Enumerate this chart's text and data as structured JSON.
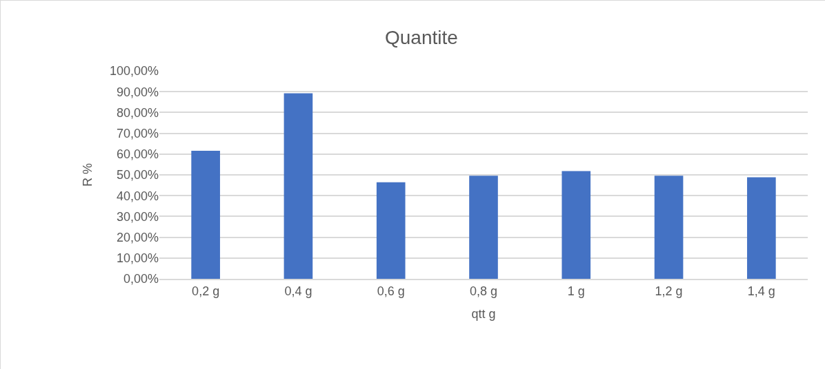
{
  "chart_data": {
    "type": "bar",
    "title": "Quantite",
    "xlabel": "qtt g",
    "ylabel": "R %",
    "categories": [
      "0,2 g",
      "0,4 g",
      "0,6 g",
      "0,8 g",
      "1 g",
      "1,2 g",
      "1,4 g"
    ],
    "values": [
      61.6,
      89.2,
      46.4,
      49.6,
      51.8,
      49.6,
      48.8
    ],
    "color": "#4472c4",
    "ylim": [
      0,
      100
    ],
    "yticks": [
      {
        "value": 0,
        "label": "0,00%"
      },
      {
        "value": 10,
        "label": "10,00%"
      },
      {
        "value": 20,
        "label": "20,00%"
      },
      {
        "value": 30,
        "label": "30,00%"
      },
      {
        "value": 40,
        "label": "40,00%"
      },
      {
        "value": 50,
        "label": "50,00%"
      },
      {
        "value": 60,
        "label": "60,00%"
      },
      {
        "value": 70,
        "label": "70,00%"
      },
      {
        "value": 80,
        "label": "80,00%"
      },
      {
        "value": 90,
        "label": "90,00%"
      },
      {
        "value": 100,
        "label": "100,00%"
      }
    ],
    "grid": "y"
  }
}
